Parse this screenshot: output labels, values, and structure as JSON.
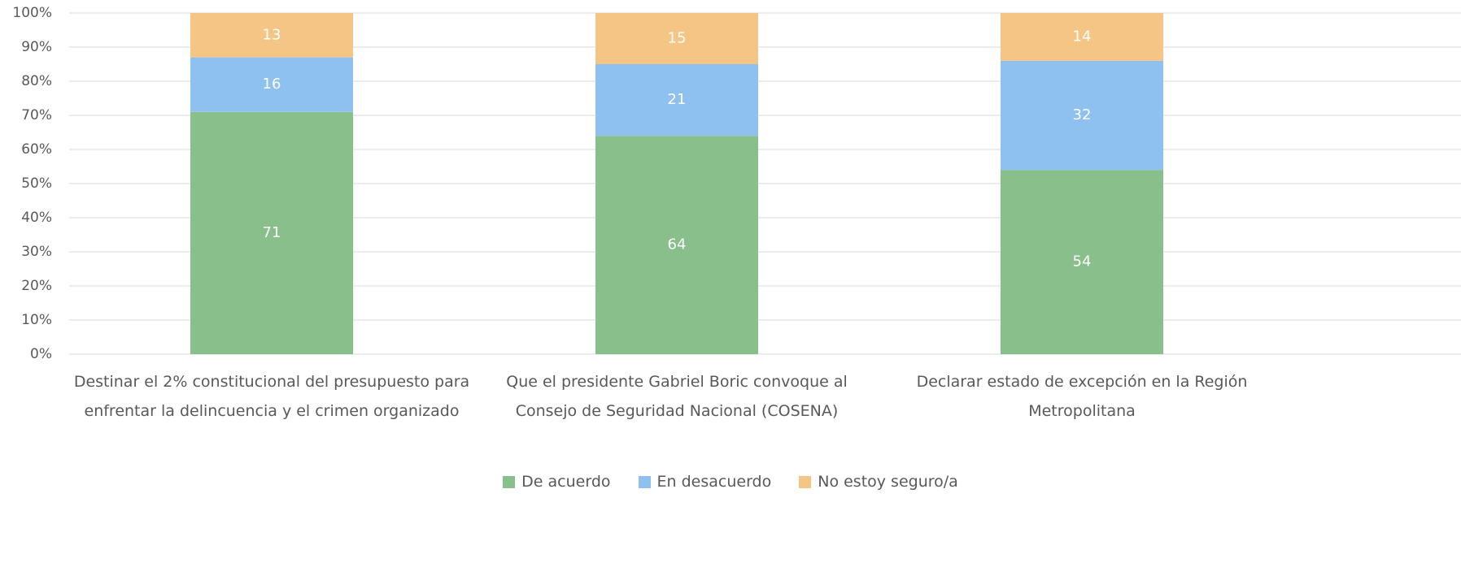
{
  "chart_data": {
    "type": "stacked_bar",
    "categories": [
      "Destinar el 2% constitucional del presupuesto para enfrentar la delincuencia y el crimen organizado",
      "Que el presidente Gabriel Boric convoque al Consejo de Seguridad Nacional (COSENA)",
      "Declarar estado de excepción en la Región Metropolitana"
    ],
    "series": [
      {
        "name": "De acuerdo",
        "color": "#88bf8a",
        "values": [
          71,
          64,
          54
        ]
      },
      {
        "name": "En desacuerdo",
        "color": "#8fc1f0",
        "values": [
          16,
          21,
          32
        ]
      },
      {
        "name": "No estoy seguro/a",
        "color": "#f4c584",
        "values": [
          13,
          15,
          14
        ]
      }
    ],
    "ylim": [
      0,
      100
    ],
    "yticks": [
      {
        "value": 0,
        "label": "0%"
      },
      {
        "value": 10,
        "label": "10%"
      },
      {
        "value": 20,
        "label": "20%"
      },
      {
        "value": 30,
        "label": "30%"
      },
      {
        "value": 40,
        "label": "40%"
      },
      {
        "value": 50,
        "label": "50%"
      },
      {
        "value": 60,
        "label": "60%"
      },
      {
        "value": 70,
        "label": "70%"
      },
      {
        "value": 80,
        "label": "80%"
      },
      {
        "value": 90,
        "label": "90%"
      },
      {
        "value": 100,
        "label": "100%"
      }
    ],
    "grid": true,
    "legend": "bottom"
  }
}
